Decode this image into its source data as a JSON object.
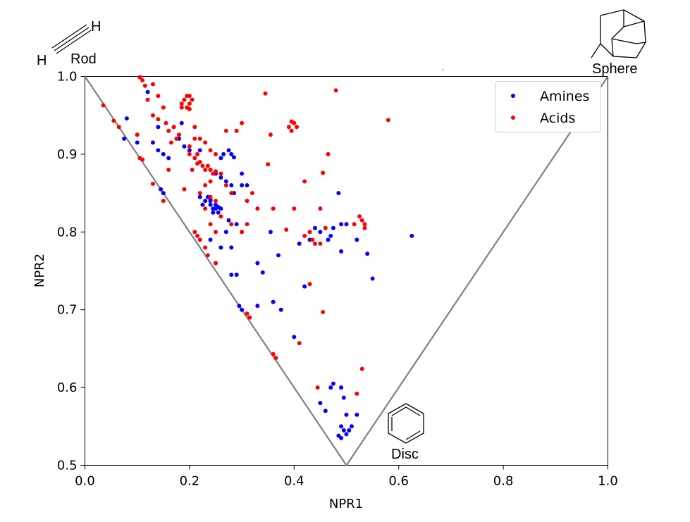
{
  "chart_data": {
    "type": "scatter",
    "xlabel": "NPR1",
    "ylabel": "NPR2",
    "xlim": [
      0.0,
      1.0
    ],
    "ylim": [
      0.5,
      1.0
    ],
    "x_ticks": [
      "0.0",
      "0.2",
      "0.4",
      "0.6",
      "0.8",
      "1.0"
    ],
    "y_ticks": [
      "0.5",
      "0.6",
      "0.7",
      "0.8",
      "0.9",
      "1.0"
    ],
    "grid": false,
    "legend_position": "top-right",
    "triangle": [
      [
        0.0,
        1.0
      ],
      [
        0.5,
        0.5
      ],
      [
        1.0,
        1.0
      ]
    ],
    "triangle_color": "#808080",
    "corner_labels": {
      "rod": "Rod",
      "sphere": "Sphere",
      "disc": "Disc",
      "h_top": "H",
      "h_left": "H"
    },
    "series": [
      {
        "name": "Amines",
        "color": "#0000ff",
        "points": [
          [
            0.08,
            0.946
          ],
          [
            0.075,
            0.92
          ],
          [
            0.12,
            0.98
          ],
          [
            0.1,
            0.915
          ],
          [
            0.13,
            0.915
          ],
          [
            0.14,
            0.905
          ],
          [
            0.15,
            0.9
          ],
          [
            0.16,
            0.895
          ],
          [
            0.14,
            0.935
          ],
          [
            0.17,
            0.935
          ],
          [
            0.18,
            0.92
          ],
          [
            0.185,
            0.94
          ],
          [
            0.19,
            0.91
          ],
          [
            0.2,
            0.905
          ],
          [
            0.22,
            0.905
          ],
          [
            0.15,
            0.85
          ],
          [
            0.145,
            0.855
          ],
          [
            0.24,
            0.88
          ],
          [
            0.25,
            0.875
          ],
          [
            0.26,
            0.87
          ],
          [
            0.27,
            0.865
          ],
          [
            0.265,
            0.9
          ],
          [
            0.275,
            0.905
          ],
          [
            0.28,
            0.9
          ],
          [
            0.285,
            0.896
          ],
          [
            0.26,
            0.895
          ],
          [
            0.28,
            0.86
          ],
          [
            0.285,
            0.85
          ],
          [
            0.23,
            0.84
          ],
          [
            0.235,
            0.845
          ],
          [
            0.24,
            0.84
          ],
          [
            0.24,
            0.835
          ],
          [
            0.245,
            0.83
          ],
          [
            0.25,
            0.83
          ],
          [
            0.255,
            0.825
          ],
          [
            0.26,
            0.83
          ],
          [
            0.245,
            0.825
          ],
          [
            0.25,
            0.835
          ],
          [
            0.24,
            0.842
          ],
          [
            0.255,
            0.832
          ],
          [
            0.225,
            0.835
          ],
          [
            0.22,
            0.845
          ],
          [
            0.27,
            0.8
          ],
          [
            0.275,
            0.815
          ],
          [
            0.29,
            0.81
          ],
          [
            0.3,
            0.875
          ],
          [
            0.31,
            0.86
          ],
          [
            0.3,
            0.86
          ],
          [
            0.3,
            0.8
          ],
          [
            0.26,
            0.78
          ],
          [
            0.28,
            0.78
          ],
          [
            0.25,
            0.76
          ],
          [
            0.24,
            0.79
          ],
          [
            0.28,
            0.745
          ],
          [
            0.29,
            0.745
          ],
          [
            0.33,
            0.76
          ],
          [
            0.34,
            0.748
          ],
          [
            0.355,
            0.8
          ],
          [
            0.37,
            0.77
          ],
          [
            0.36,
            0.71
          ],
          [
            0.375,
            0.7
          ],
          [
            0.33,
            0.705
          ],
          [
            0.42,
            0.73
          ],
          [
            0.4,
            0.665
          ],
          [
            0.43,
            0.79
          ],
          [
            0.41,
            0.785
          ],
          [
            0.44,
            0.805
          ],
          [
            0.465,
            0.79
          ],
          [
            0.47,
            0.795
          ],
          [
            0.475,
            0.805
          ],
          [
            0.45,
            0.8
          ],
          [
            0.49,
            0.81
          ],
          [
            0.5,
            0.81
          ],
          [
            0.485,
            0.85
          ],
          [
            0.49,
            0.775
          ],
          [
            0.52,
            0.79
          ],
          [
            0.54,
            0.772
          ],
          [
            0.55,
            0.74
          ],
          [
            0.625,
            0.795
          ],
          [
            0.295,
            0.705
          ],
          [
            0.3,
            0.7
          ],
          [
            0.47,
            0.6
          ],
          [
            0.475,
            0.605
          ],
          [
            0.49,
            0.6
          ],
          [
            0.45,
            0.58
          ],
          [
            0.46,
            0.57
          ],
          [
            0.495,
            0.587
          ],
          [
            0.5,
            0.565
          ],
          [
            0.52,
            0.565
          ],
          [
            0.49,
            0.55
          ],
          [
            0.495,
            0.545
          ],
          [
            0.5,
            0.54
          ],
          [
            0.505,
            0.545
          ],
          [
            0.51,
            0.55
          ],
          [
            0.49,
            0.535
          ],
          [
            0.485,
            0.538
          ]
        ]
      },
      {
        "name": "Acids",
        "color": "#ff0000",
        "points": [
          [
            0.035,
            0.963
          ],
          [
            0.055,
            0.943
          ],
          [
            0.065,
            0.935
          ],
          [
            0.1,
            0.925
          ],
          [
            0.105,
            0.895
          ],
          [
            0.11,
            0.893
          ],
          [
            0.13,
            0.862
          ],
          [
            0.105,
            0.999
          ],
          [
            0.11,
            0.995
          ],
          [
            0.115,
            0.988
          ],
          [
            0.13,
            0.99
          ],
          [
            0.12,
            0.97
          ],
          [
            0.14,
            0.975
          ],
          [
            0.15,
            0.96
          ],
          [
            0.13,
            0.95
          ],
          [
            0.14,
            0.945
          ],
          [
            0.155,
            0.94
          ],
          [
            0.16,
            0.93
          ],
          [
            0.17,
            0.935
          ],
          [
            0.175,
            0.92
          ],
          [
            0.165,
            0.915
          ],
          [
            0.18,
            0.925
          ],
          [
            0.185,
            0.965
          ],
          [
            0.19,
            0.97
          ],
          [
            0.195,
            0.975
          ],
          [
            0.2,
            0.965
          ],
          [
            0.185,
            0.96
          ],
          [
            0.195,
            0.96
          ],
          [
            0.2,
            0.975
          ],
          [
            0.205,
            0.97
          ],
          [
            0.2,
            0.958
          ],
          [
            0.21,
            0.935
          ],
          [
            0.22,
            0.92
          ],
          [
            0.23,
            0.915
          ],
          [
            0.2,
            0.9
          ],
          [
            0.21,
            0.895
          ],
          [
            0.215,
            0.888
          ],
          [
            0.22,
            0.89
          ],
          [
            0.225,
            0.885
          ],
          [
            0.23,
            0.88
          ],
          [
            0.235,
            0.885
          ],
          [
            0.24,
            0.88
          ],
          [
            0.245,
            0.875
          ],
          [
            0.25,
            0.878
          ],
          [
            0.26,
            0.875
          ],
          [
            0.205,
            0.88
          ],
          [
            0.215,
            0.9
          ],
          [
            0.2,
            0.91
          ],
          [
            0.21,
            0.92
          ],
          [
            0.23,
            0.86
          ],
          [
            0.22,
            0.85
          ],
          [
            0.24,
            0.845
          ],
          [
            0.25,
            0.84
          ],
          [
            0.23,
            0.83
          ],
          [
            0.26,
            0.82
          ],
          [
            0.25,
            0.8
          ],
          [
            0.24,
            0.81
          ],
          [
            0.27,
            0.86
          ],
          [
            0.28,
            0.85
          ],
          [
            0.24,
            0.865
          ],
          [
            0.16,
            0.88
          ],
          [
            0.19,
            0.855
          ],
          [
            0.24,
            0.905
          ],
          [
            0.25,
            0.9
          ],
          [
            0.27,
            0.93
          ],
          [
            0.29,
            0.93
          ],
          [
            0.3,
            0.94
          ],
          [
            0.32,
            0.85
          ],
          [
            0.31,
            0.84
          ],
          [
            0.33,
            0.83
          ],
          [
            0.31,
            0.81
          ],
          [
            0.28,
            0.81
          ],
          [
            0.3,
            0.8
          ],
          [
            0.235,
            0.77
          ],
          [
            0.23,
            0.78
          ],
          [
            0.22,
            0.79
          ],
          [
            0.21,
            0.8
          ],
          [
            0.215,
            0.795
          ],
          [
            0.25,
            0.76
          ],
          [
            0.345,
            0.978
          ],
          [
            0.395,
            0.942
          ],
          [
            0.4,
            0.94
          ],
          [
            0.39,
            0.935
          ],
          [
            0.395,
            0.93
          ],
          [
            0.405,
            0.935
          ],
          [
            0.35,
            0.887
          ],
          [
            0.36,
            0.83
          ],
          [
            0.385,
            0.803
          ],
          [
            0.4,
            0.83
          ],
          [
            0.42,
            0.795
          ],
          [
            0.43,
            0.8
          ],
          [
            0.435,
            0.79
          ],
          [
            0.44,
            0.785
          ],
          [
            0.45,
            0.785
          ],
          [
            0.45,
            0.83
          ],
          [
            0.42,
            0.865
          ],
          [
            0.455,
            0.876
          ],
          [
            0.465,
            0.9
          ],
          [
            0.46,
            0.805
          ],
          [
            0.43,
            0.733
          ],
          [
            0.48,
            0.982
          ],
          [
            0.58,
            0.944
          ],
          [
            0.515,
            0.81
          ],
          [
            0.525,
            0.82
          ],
          [
            0.53,
            0.815
          ],
          [
            0.535,
            0.81
          ],
          [
            0.535,
            0.805
          ],
          [
            0.455,
            0.697
          ],
          [
            0.41,
            0.657
          ],
          [
            0.36,
            0.643
          ],
          [
            0.365,
            0.638
          ],
          [
            0.445,
            0.6
          ],
          [
            0.53,
            0.624
          ],
          [
            0.52,
            0.592
          ],
          [
            0.315,
            0.69
          ],
          [
            0.31,
            0.695
          ],
          [
            0.355,
            0.925
          ],
          [
            0.15,
            0.84
          ]
        ]
      }
    ]
  }
}
